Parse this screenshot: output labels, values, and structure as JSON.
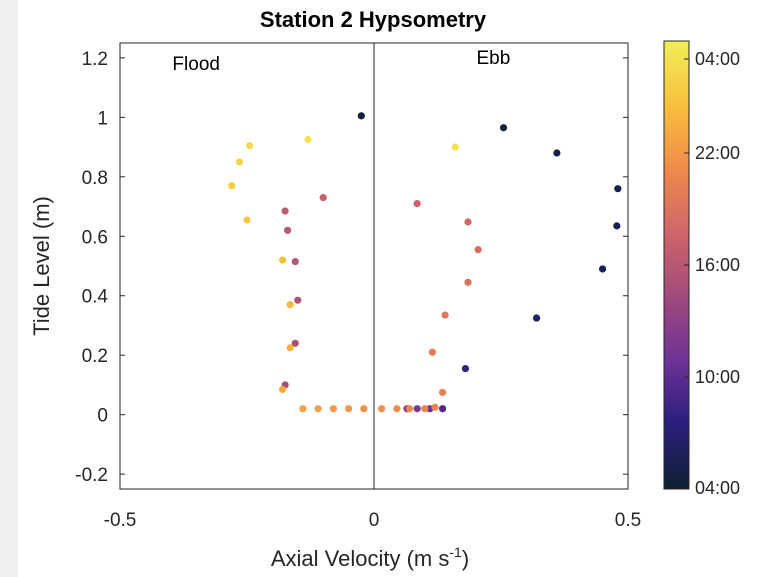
{
  "chart_data": {
    "type": "scatter",
    "title": "Station 2 Hypsometry",
    "xlabel": "Axial Velocity (m s",
    "xlabel_sup": "-1",
    "xlabel_end": ")",
    "ylabel": "Tide Level (m)",
    "xlim": [
      -0.5,
      0.5
    ],
    "ylim": [
      -0.25,
      1.25
    ],
    "xticks": [
      -0.5,
      0,
      0.5
    ],
    "xtick_labels": [
      "-0.5",
      "0",
      "0.5"
    ],
    "yticks": [
      -0.2,
      0,
      0.2,
      0.4,
      0.6,
      0.8,
      1.0,
      1.2
    ],
    "ytick_labels": [
      "-0.2",
      "0",
      "0.2",
      "0.4",
      "0.6",
      "0.8",
      "1",
      "1.2"
    ],
    "grid": false,
    "vertical_line_x": 0,
    "annotations": [
      {
        "text": "Flood",
        "x": -0.35,
        "y": 1.16
      },
      {
        "text": "Ebb",
        "x": 0.235,
        "y": 1.18
      }
    ],
    "colorbar": {
      "colormap": "plasma",
      "tick_labels": [
        "04:00",
        "10:00",
        "16:00",
        "22:00",
        "04:00"
      ],
      "stops": [
        "#0d2030",
        "#2a1e7c",
        "#6e3296",
        "#a04a7c",
        "#d0656a",
        "#f08a4a",
        "#f8c03c",
        "#f0ee58"
      ]
    },
    "points": [
      {
        "x": -0.025,
        "y": 1.005,
        "t": 0.02
      },
      {
        "x": 0.255,
        "y": 0.965,
        "t": 0.03
      },
      {
        "x": 0.36,
        "y": 0.88,
        "t": 0.04
      },
      {
        "x": 0.48,
        "y": 0.76,
        "t": 0.05
      },
      {
        "x": 0.478,
        "y": 0.635,
        "t": 0.06
      },
      {
        "x": 0.45,
        "y": 0.49,
        "t": 0.08
      },
      {
        "x": 0.32,
        "y": 0.325,
        "t": 0.1
      },
      {
        "x": 0.18,
        "y": 0.155,
        "t": 0.16
      },
      {
        "x": 0.135,
        "y": 0.02,
        "t": 0.22
      },
      {
        "x": 0.11,
        "y": 0.02,
        "t": 0.28
      },
      {
        "x": 0.085,
        "y": 0.02,
        "t": 0.32
      },
      {
        "x": 0.065,
        "y": 0.02,
        "t": 0.36
      },
      {
        "x": -0.175,
        "y": 0.1,
        "t": 0.44
      },
      {
        "x": -0.155,
        "y": 0.24,
        "t": 0.46
      },
      {
        "x": -0.15,
        "y": 0.385,
        "t": 0.48
      },
      {
        "x": -0.155,
        "y": 0.515,
        "t": 0.49
      },
      {
        "x": -0.17,
        "y": 0.62,
        "t": 0.5
      },
      {
        "x": -0.175,
        "y": 0.685,
        "t": 0.52
      },
      {
        "x": -0.1,
        "y": 0.73,
        "t": 0.54
      },
      {
        "x": 0.085,
        "y": 0.71,
        "t": 0.56
      },
      {
        "x": 0.185,
        "y": 0.648,
        "t": 0.58
      },
      {
        "x": 0.205,
        "y": 0.555,
        "t": 0.6
      },
      {
        "x": 0.185,
        "y": 0.445,
        "t": 0.62
      },
      {
        "x": 0.14,
        "y": 0.335,
        "t": 0.64
      },
      {
        "x": 0.115,
        "y": 0.21,
        "t": 0.66
      },
      {
        "x": 0.135,
        "y": 0.075,
        "t": 0.68
      },
      {
        "x": 0.12,
        "y": 0.025,
        "t": 0.69
      },
      {
        "x": 0.1,
        "y": 0.02,
        "t": 0.7
      },
      {
        "x": 0.07,
        "y": 0.02,
        "t": 0.71
      },
      {
        "x": 0.045,
        "y": 0.02,
        "t": 0.72
      },
      {
        "x": 0.015,
        "y": 0.02,
        "t": 0.73
      },
      {
        "x": -0.02,
        "y": 0.02,
        "t": 0.74
      },
      {
        "x": -0.05,
        "y": 0.02,
        "t": 0.75
      },
      {
        "x": -0.08,
        "y": 0.02,
        "t": 0.76
      },
      {
        "x": -0.11,
        "y": 0.02,
        "t": 0.77
      },
      {
        "x": -0.14,
        "y": 0.02,
        "t": 0.78
      },
      {
        "x": -0.18,
        "y": 0.085,
        "t": 0.8
      },
      {
        "x": -0.165,
        "y": 0.225,
        "t": 0.82
      },
      {
        "x": -0.165,
        "y": 0.37,
        "t": 0.84
      },
      {
        "x": -0.18,
        "y": 0.52,
        "t": 0.86
      },
      {
        "x": -0.25,
        "y": 0.655,
        "t": 0.88
      },
      {
        "x": -0.28,
        "y": 0.77,
        "t": 0.9
      },
      {
        "x": -0.265,
        "y": 0.85,
        "t": 0.92
      },
      {
        "x": -0.245,
        "y": 0.905,
        "t": 0.94
      },
      {
        "x": -0.13,
        "y": 0.925,
        "t": 0.97
      },
      {
        "x": 0.16,
        "y": 0.9,
        "t": 0.96
      }
    ]
  }
}
